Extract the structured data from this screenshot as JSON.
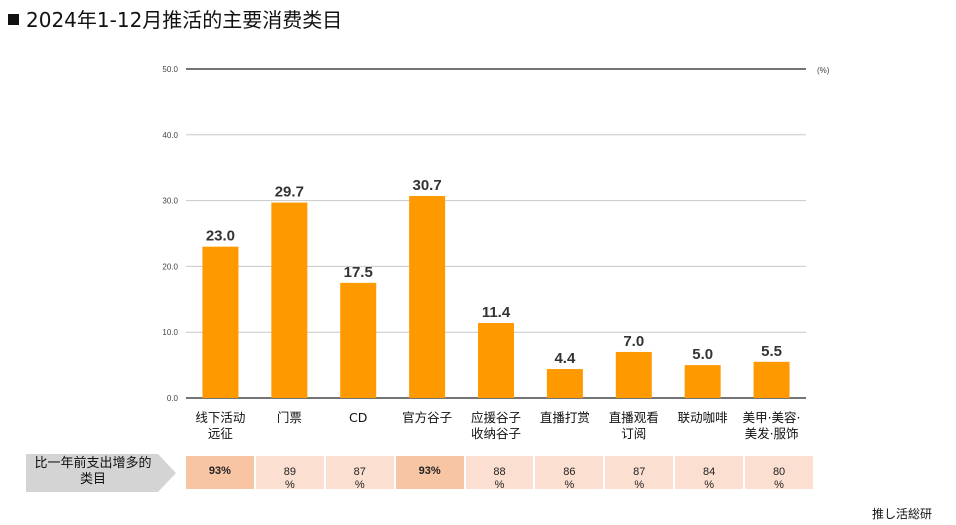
{
  "title": "2024年1-12月推活的主要消费类目",
  "chart_data": {
    "type": "bar",
    "categories": [
      "线下活动\n远征",
      "门票",
      "CD",
      "官方谷子",
      "应援谷子\n收纳谷子",
      "直播打赏",
      "直播观看\n订阅",
      "联动咖啡",
      "美甲·美容·\n美发·服饰"
    ],
    "values": [
      23.0,
      29.7,
      17.5,
      30.7,
      11.4,
      4.4,
      7.0,
      5.0,
      5.5
    ],
    "value_labels": [
      "23.0",
      "29.7",
      "17.5",
      "30.7",
      "11.4",
      "4.4",
      "7.0",
      "5.0",
      "5.5"
    ],
    "unit": "(%)",
    "ylim": [
      0,
      50
    ],
    "yticks": [
      "0.0",
      "10.0",
      "20.0",
      "30.0",
      "40.0",
      "50.0"
    ],
    "grid": true,
    "bar_color": "#ff9900"
  },
  "comparison": {
    "label": "比一年前支出增多的类目",
    "values": [
      "93%",
      "89\n%",
      "87\n%",
      "93%",
      "88\n%",
      "86\n%",
      "87\n%",
      "84\n%",
      "80\n%"
    ],
    "highlight": [
      true,
      false,
      false,
      true,
      false,
      false,
      false,
      false,
      false
    ],
    "colors": {
      "normal": "#fbe0d2",
      "highlight": "#f7c4a4"
    }
  },
  "source": "推し活総研"
}
